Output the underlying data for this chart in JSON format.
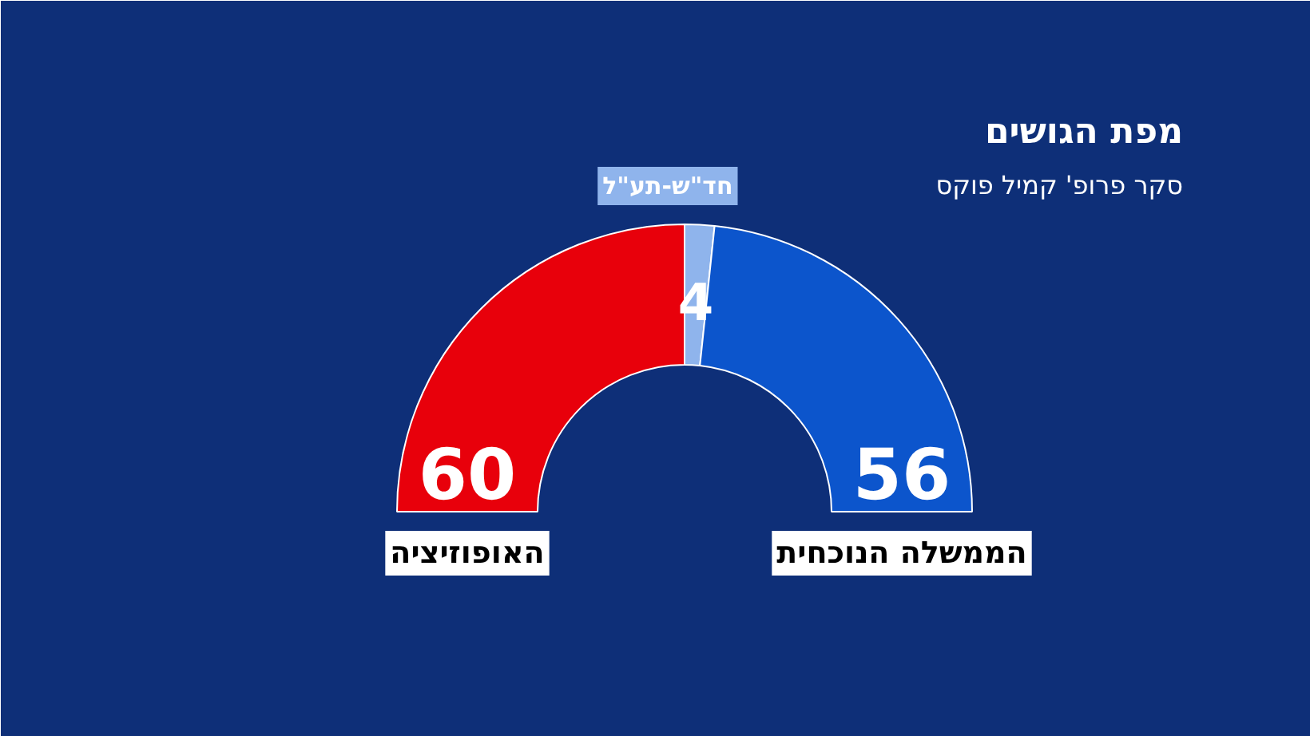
{
  "chart_data": {
    "type": "donut",
    "title": "מפת הגושים",
    "subtitle": "סקר פרופ' קמיל פוקס",
    "categories": [
      "האופוזיציה",
      "חד\"ש-תע\"ל",
      "הממשלה הנוכחית"
    ],
    "values": [
      60,
      4,
      56
    ],
    "colors": [
      "#e8000b",
      "#8fb4ec",
      "#0c55cc"
    ],
    "data_labels": true
  }
}
